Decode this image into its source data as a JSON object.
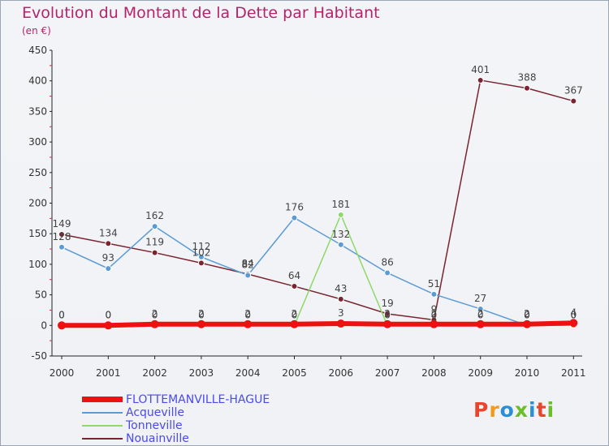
{
  "title": "Evolution du Montant de la Dette par Habitant",
  "unit": "(en €)",
  "logo": {
    "text": "Proxiti",
    "colors": [
      "#e9442c",
      "#f29a1c",
      "#2a8fd8",
      "#6cbd2a",
      "#2a8fd8",
      "#e9442c",
      "#6cbd2a"
    ]
  },
  "chart_data": {
    "type": "line",
    "x": [
      "2000",
      "2001",
      "2002",
      "2003",
      "2004",
      "2005",
      "2006",
      "2007",
      "2008",
      "2009",
      "2010",
      "2011"
    ],
    "ylim": [
      -50,
      450
    ],
    "yticks": [
      "-50",
      "0",
      "50",
      "100",
      "150",
      "200",
      "250",
      "300",
      "350",
      "400",
      "450"
    ],
    "grid": false,
    "legend_position": "bottom-left",
    "series": [
      {
        "name": "FLOTTEMANVILLE-HAGUE",
        "color": "#ee1111",
        "width": 6,
        "values": [
          0,
          0,
          2,
          2,
          2,
          2,
          3,
          2,
          2,
          2,
          2,
          4
        ]
      },
      {
        "name": "Acqueville",
        "color": "#5b9bd5",
        "width": 1.5,
        "values": [
          128,
          93,
          162,
          112,
          82,
          176,
          132,
          86,
          51,
          27,
          0,
          0
        ]
      },
      {
        "name": "Tonneville",
        "color": "#8fd86a",
        "width": 1.5,
        "values": [
          0,
          0,
          0,
          0,
          0,
          0,
          181,
          0,
          0,
          0,
          0,
          0
        ]
      },
      {
        "name": "Nouainville",
        "color": "#7a2430",
        "width": 1.5,
        "values": [
          149,
          134,
          119,
          102,
          84,
          64,
          43,
          19,
          9,
          401,
          388,
          367
        ]
      }
    ]
  }
}
